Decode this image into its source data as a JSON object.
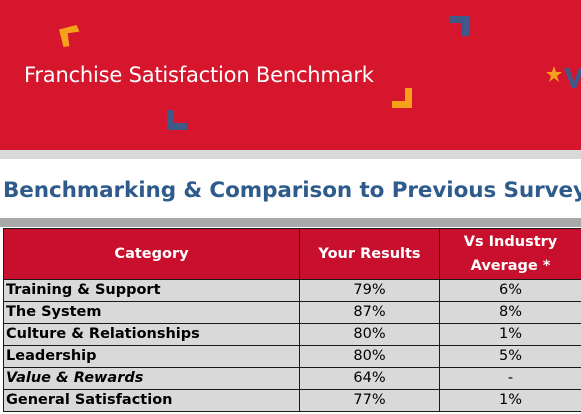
{
  "header": {
    "title": "Franchise Satisfaction Benchmark",
    "accent_colors": {
      "banner": "#d5162c",
      "orange": "#f5a11a",
      "navy": "#3f5a8a"
    }
  },
  "section": {
    "title": "Benchmarking & Comparison to Previous Survey"
  },
  "table": {
    "headers": {
      "category": "Category",
      "your_results": "Your Results",
      "vs_industry_line1": "Vs Industry",
      "vs_industry_line2": "Average *"
    },
    "rows": [
      {
        "category": "Training & Support",
        "your_results": "79%",
        "vs_industry": "6%",
        "italic": false
      },
      {
        "category": "The System",
        "your_results": "87%",
        "vs_industry": "8%",
        "italic": false
      },
      {
        "category": "Culture & Relationships",
        "your_results": "80%",
        "vs_industry": "1%",
        "italic": false
      },
      {
        "category": "Leadership",
        "your_results": "80%",
        "vs_industry": "5%",
        "italic": false
      },
      {
        "category": "Value & Rewards",
        "your_results": "64%",
        "vs_industry": "-",
        "italic": true
      },
      {
        "category": "General Satisfaction",
        "your_results": "77%",
        "vs_industry": "1%",
        "italic": false
      }
    ]
  }
}
